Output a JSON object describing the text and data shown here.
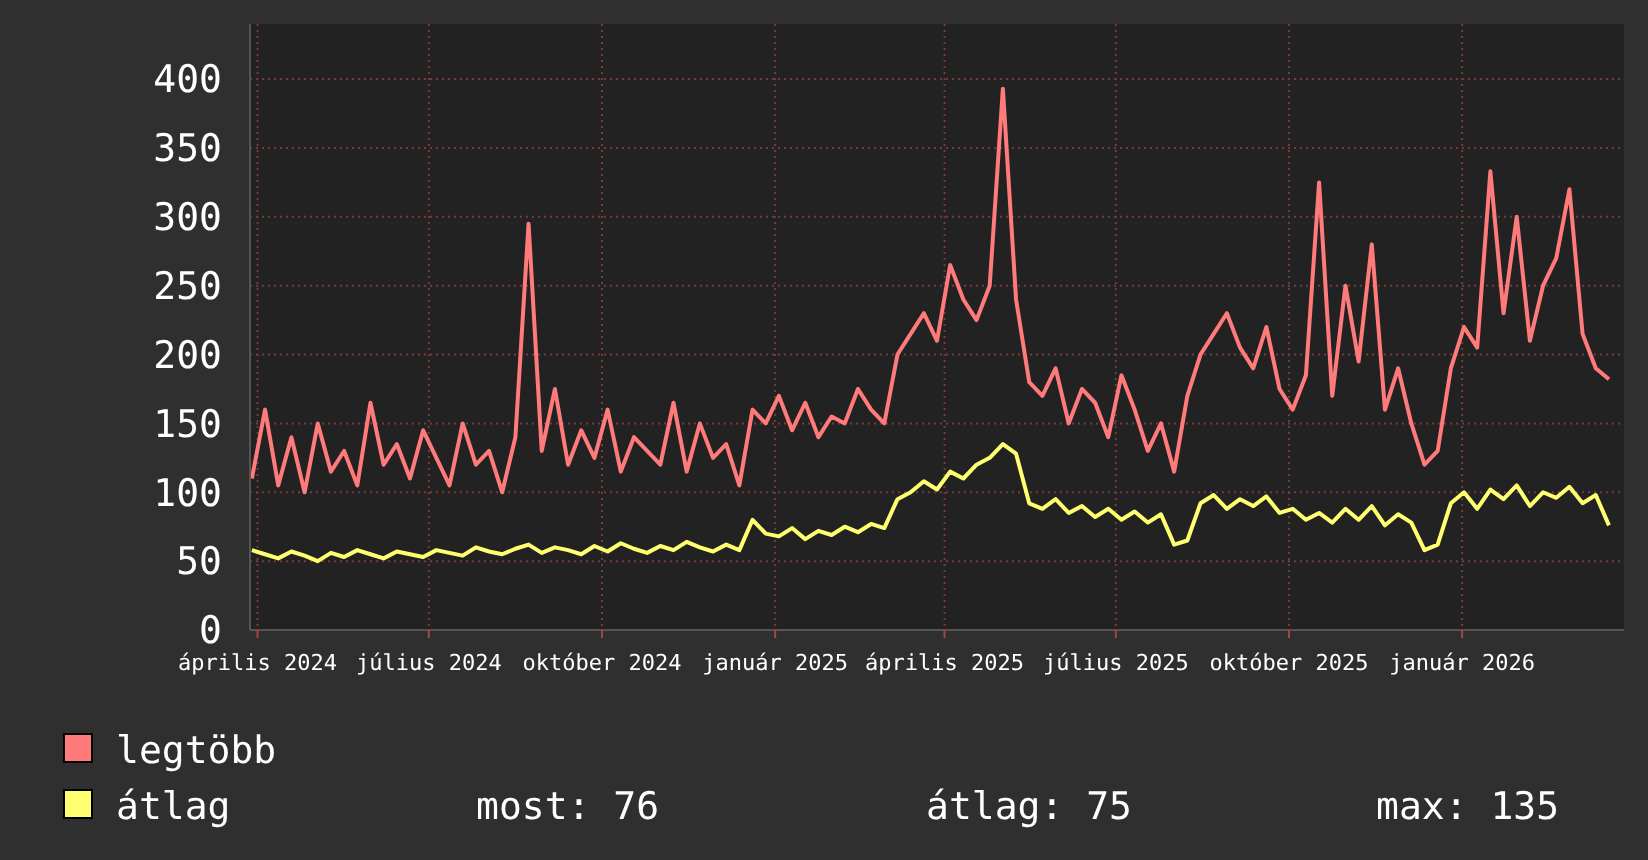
{
  "chart_data": {
    "type": "line",
    "x": [
      "2024-03-29",
      "2024-04-05",
      "2024-04-12",
      "2024-04-19",
      "2024-04-26",
      "2024-05-03",
      "2024-05-10",
      "2024-05-17",
      "2024-05-24",
      "2024-05-31",
      "2024-06-07",
      "2024-06-14",
      "2024-06-21",
      "2024-06-28",
      "2024-07-05",
      "2024-07-12",
      "2024-07-19",
      "2024-07-26",
      "2024-08-02",
      "2024-08-09",
      "2024-08-16",
      "2024-08-23",
      "2024-08-30",
      "2024-09-06",
      "2024-09-13",
      "2024-09-20",
      "2024-09-27",
      "2024-10-04",
      "2024-10-11",
      "2024-10-18",
      "2024-10-25",
      "2024-11-01",
      "2024-11-08",
      "2024-11-15",
      "2024-11-22",
      "2024-11-29",
      "2024-12-06",
      "2024-12-13",
      "2024-12-20",
      "2024-12-27",
      "2025-01-03",
      "2025-01-10",
      "2025-01-17",
      "2025-01-24",
      "2025-01-31",
      "2025-02-07",
      "2025-02-14",
      "2025-02-21",
      "2025-02-28",
      "2025-03-07",
      "2025-03-14",
      "2025-03-21",
      "2025-03-28",
      "2025-04-04",
      "2025-04-11",
      "2025-04-18",
      "2025-04-25",
      "2025-05-02",
      "2025-05-09",
      "2025-05-16",
      "2025-05-23",
      "2025-05-30",
      "2025-06-06",
      "2025-06-13",
      "2025-06-20",
      "2025-06-27",
      "2025-07-04",
      "2025-07-11",
      "2025-07-18",
      "2025-07-25",
      "2025-08-01",
      "2025-08-08",
      "2025-08-15",
      "2025-08-22",
      "2025-08-29",
      "2025-09-05",
      "2025-09-12",
      "2025-09-19",
      "2025-09-26",
      "2025-10-03",
      "2025-10-10",
      "2025-10-17",
      "2025-10-24",
      "2025-10-31",
      "2025-11-07",
      "2025-11-14",
      "2025-11-21",
      "2025-11-28",
      "2025-12-05",
      "2025-12-12",
      "2025-12-19",
      "2025-12-26",
      "2026-01-02",
      "2026-01-09",
      "2026-01-16",
      "2026-01-23",
      "2026-01-30",
      "2026-02-06",
      "2026-02-13",
      "2026-02-20",
      "2026-02-27",
      "2026-03-06",
      "2026-03-13",
      "2026-03-20"
    ],
    "series": [
      {
        "name": "legtöbb",
        "color": "#ff7b7b",
        "values": [
          110,
          160,
          105,
          140,
          100,
          150,
          115,
          130,
          105,
          165,
          120,
          135,
          110,
          145,
          125,
          105,
          150,
          120,
          130,
          100,
          140,
          295,
          130,
          175,
          120,
          145,
          125,
          160,
          115,
          140,
          130,
          120,
          165,
          115,
          150,
          125,
          135,
          105,
          160,
          150,
          170,
          145,
          165,
          140,
          155,
          150,
          175,
          160,
          150,
          200,
          215,
          230,
          210,
          265,
          240,
          225,
          250,
          393,
          240,
          180,
          170,
          190,
          150,
          175,
          165,
          140,
          185,
          160,
          130,
          150,
          115,
          170,
          200,
          215,
          230,
          205,
          190,
          220,
          175,
          160,
          185,
          325,
          170,
          250,
          195,
          280,
          160,
          190,
          150,
          120,
          130,
          190,
          220,
          205,
          333,
          230,
          300,
          210,
          250,
          270,
          320,
          215,
          190,
          182
        ]
      },
      {
        "name": "átlag",
        "color": "#ffff70",
        "values": [
          58,
          55,
          52,
          57,
          54,
          50,
          56,
          53,
          58,
          55,
          52,
          57,
          55,
          53,
          58,
          56,
          54,
          60,
          57,
          55,
          59,
          62,
          56,
          60,
          58,
          55,
          61,
          57,
          63,
          59,
          56,
          61,
          58,
          64,
          60,
          57,
          62,
          58,
          80,
          70,
          68,
          74,
          66,
          72,
          69,
          75,
          71,
          77,
          74,
          95,
          100,
          108,
          102,
          115,
          110,
          120,
          125,
          135,
          128,
          92,
          88,
          95,
          85,
          90,
          82,
          88,
          80,
          86,
          78,
          84,
          62,
          65,
          92,
          98,
          88,
          95,
          90,
          97,
          85,
          88,
          80,
          85,
          78,
          88,
          80,
          90,
          76,
          84,
          78,
          58,
          62,
          92,
          100,
          88,
          102,
          95,
          105,
          90,
          100,
          96,
          104,
          92,
          98,
          76
        ]
      }
    ],
    "xlim": [
      "2024-03-28",
      "2026-03-28"
    ],
    "xticks": [
      {
        "value": "2024-04-01",
        "label": "április 2024"
      },
      {
        "value": "2024-07-01",
        "label": "július 2024"
      },
      {
        "value": "2024-10-01",
        "label": "október 2024"
      },
      {
        "value": "2025-01-01",
        "label": "január 2025"
      },
      {
        "value": "2025-04-01",
        "label": "április 2025"
      },
      {
        "value": "2025-07-01",
        "label": "július 2025"
      },
      {
        "value": "2025-10-01",
        "label": "október 2025"
      },
      {
        "value": "2026-01-01",
        "label": "január 2026"
      }
    ],
    "ylim": [
      0,
      440
    ],
    "yticks": [
      0,
      50,
      100,
      150,
      200,
      250,
      300,
      350,
      400
    ],
    "grid": true,
    "legend": "bottom",
    "marker": "none",
    "line_style": "solid",
    "annotations": [
      "most: 76",
      "átlag: 75",
      "max: 135"
    ]
  }
}
